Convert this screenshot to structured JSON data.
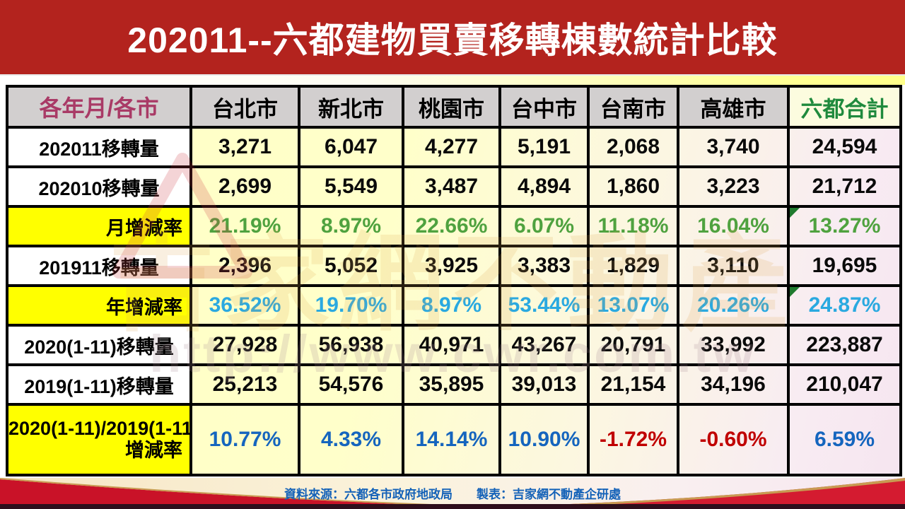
{
  "title": "202011--六都建物買賣移轉棟數統計比較",
  "table": {
    "header_label": "各年月/各市",
    "cities": [
      "台北市",
      "新北市",
      "桃園市",
      "台中市",
      "台南市",
      "高雄市"
    ],
    "total_label": "六都合計",
    "rows": [
      {
        "label": "202011移轉量",
        "label_bg": "white",
        "color": "black",
        "marker": false,
        "values": [
          "3,271",
          "6,047",
          "4,277",
          "5,191",
          "2,068",
          "3,740",
          "24,594"
        ]
      },
      {
        "label": "202010移轉量",
        "label_bg": "white",
        "color": "black",
        "marker": false,
        "values": [
          "2,699",
          "5,549",
          "3,487",
          "4,894",
          "1,860",
          "3,223",
          "21,712"
        ]
      },
      {
        "label": "月增減率",
        "label_bg": "yellow",
        "color": "green",
        "marker": true,
        "values": [
          "21.19%",
          "8.97%",
          "22.66%",
          "6.07%",
          "11.18%",
          "16.04%",
          "13.27%"
        ]
      },
      {
        "label": "201911移轉量",
        "label_bg": "white",
        "color": "black",
        "marker": false,
        "values": [
          "2,396",
          "5,052",
          "3,925",
          "3,383",
          "1,829",
          "3,110",
          "19,695"
        ]
      },
      {
        "label": "年增減率",
        "label_bg": "yellow",
        "color": "cyan",
        "marker": true,
        "values": [
          "36.52%",
          "19.70%",
          "8.97%",
          "53.44%",
          "13.07%",
          "20.26%",
          "24.87%"
        ]
      },
      {
        "label": "2020(1-11)移轉量",
        "label_bg": "white",
        "color": "black",
        "marker": false,
        "values": [
          "27,928",
          "56,938",
          "40,971",
          "43,267",
          "20,791",
          "33,992",
          "223,887"
        ]
      },
      {
        "label": "2019(1-11)移轉量",
        "label_bg": "white",
        "color": "black",
        "marker": false,
        "values": [
          "25,213",
          "54,576",
          "35,895",
          "39,013",
          "21,154",
          "34,196",
          "210,047"
        ]
      },
      {
        "label": "2020(1-11)/2019(1-11)增減率",
        "label_lines": [
          "2020(1-11)/2019(1-11)",
          "增減率"
        ],
        "label_bg": "yellow",
        "color": "blue",
        "marker": false,
        "value_colors": [
          "blue",
          "blue",
          "blue",
          "blue",
          "red",
          "red",
          "blue"
        ],
        "values": [
          "10.77%",
          "4.33%",
          "14.14%",
          "10.90%",
          "-1.72%",
          "-0.60%",
          "6.59%"
        ]
      }
    ]
  },
  "chart_data": {
    "type": "table",
    "title": "202011--六都建物買賣移轉棟數統計比較",
    "columns": [
      "各年月/各市",
      "台北市",
      "新北市",
      "桃園市",
      "台中市",
      "台南市",
      "高雄市",
      "六都合計"
    ],
    "rows": [
      [
        "202011移轉量",
        3271,
        6047,
        4277,
        5191,
        2068,
        3740,
        24594
      ],
      [
        "202010移轉量",
        2699,
        5549,
        3487,
        4894,
        1860,
        3223,
        21712
      ],
      [
        "月增減率",
        "21.19%",
        "8.97%",
        "22.66%",
        "6.07%",
        "11.18%",
        "16.04%",
        "13.27%"
      ],
      [
        "201911移轉量",
        2396,
        5052,
        3925,
        3383,
        1829,
        3110,
        19695
      ],
      [
        "年增減率",
        "36.52%",
        "19.70%",
        "8.97%",
        "53.44%",
        "13.07%",
        "20.26%",
        "24.87%"
      ],
      [
        "2020(1-11)移轉量",
        27928,
        56938,
        40971,
        43267,
        20791,
        33992,
        223887
      ],
      [
        "2019(1-11)移轉量",
        25213,
        54576,
        35895,
        39013,
        21154,
        34196,
        210047
      ],
      [
        "2020(1-11)/2019(1-11)增減率",
        "10.77%",
        "4.33%",
        "14.14%",
        "10.90%",
        "-1.72%",
        "-0.60%",
        "6.59%"
      ]
    ]
  },
  "watermark": {
    "brand": "吉家網不動產",
    "url": "http://www.cwr.com.tw"
  },
  "footer": {
    "source": "資料來源：六都各市政府地政局",
    "maker": "製表：吉家網不動產企研處"
  },
  "colors": {
    "title_bg": "#B3231E",
    "header_gray": "#D2CFCF",
    "header_label_text": "#A93A66",
    "total_header_text": "#1F8A3D",
    "label_yellow": "#FFFF00",
    "value_green": "#4FA23F",
    "value_cyan": "#2AA9E0",
    "value_blue": "#1565BE",
    "value_negative_red": "#C00000",
    "footer_text_blue": "#1462B8",
    "footer_red": "#C91228"
  }
}
